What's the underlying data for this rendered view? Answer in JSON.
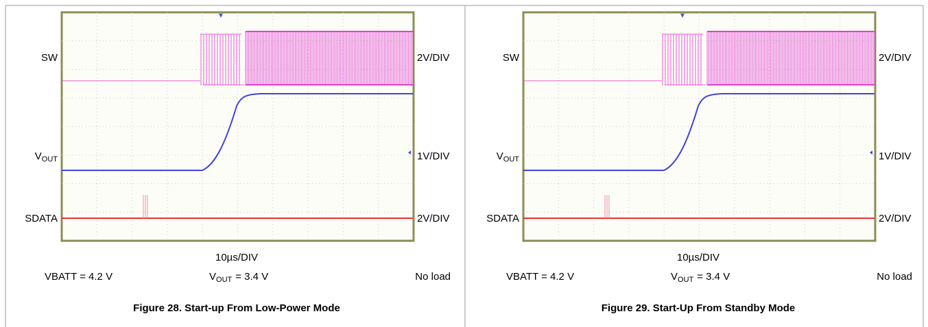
{
  "figures": [
    {
      "channels": [
        {
          "label": "SW",
          "scale": "2V/DIV"
        },
        {
          "label": "V",
          "label_sub": "OUT",
          "scale": "1V/DIV"
        },
        {
          "label": "SDATA",
          "scale": "2V/DIV"
        }
      ],
      "timebase": "10µs/DIV",
      "conditions": {
        "vbatt": "VBATT = 4.2 V",
        "vout": "V",
        "vout_sub": "OUT",
        "vout_rest": "= 3.4 V",
        "load": "No load"
      },
      "caption": "Figure 28. Start-up From Low-Power Mode"
    },
    {
      "channels": [
        {
          "label": "SW",
          "scale": "2V/DIV"
        },
        {
          "label": "V",
          "label_sub": "OUT",
          "scale": "1V/DIV"
        },
        {
          "label": "SDATA",
          "scale": "2V/DIV"
        }
      ],
      "timebase": "10µs/DIV",
      "conditions": {
        "vbatt": "VBATT = 4.2 V",
        "vout": "V",
        "vout_sub": "OUT",
        "vout_rest": "= 3.4 V",
        "load": "No load"
      },
      "caption": "Figure 29. Start-Up From Standby Mode"
    }
  ]
}
